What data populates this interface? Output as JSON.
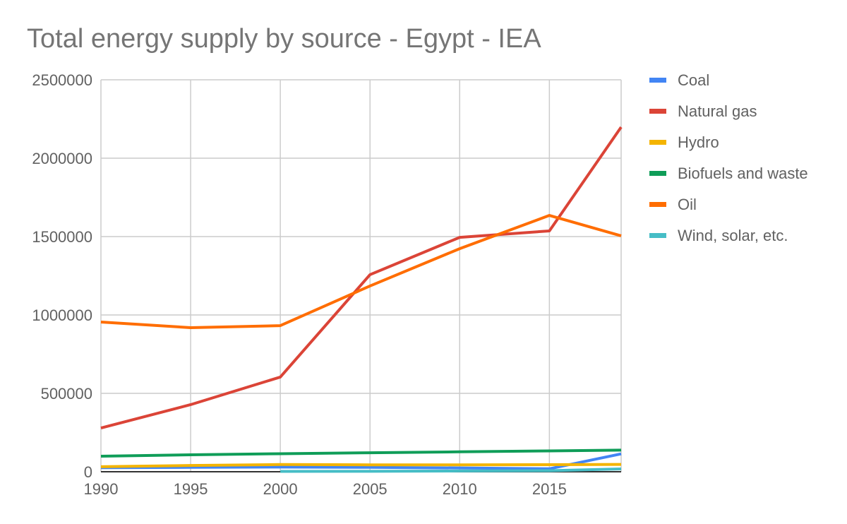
{
  "chart_data": {
    "type": "line",
    "title": "Total energy supply by source - Egypt - IEA",
    "xlabel": "",
    "ylabel": "",
    "x": [
      1990,
      1995,
      2000,
      2005,
      2010,
      2015,
      2019
    ],
    "xlim": [
      1990,
      2019
    ],
    "ylim": [
      0,
      2500000
    ],
    "xticks": [
      "1990",
      "1995",
      "2000",
      "2005",
      "2010",
      "2015"
    ],
    "yticks": [
      "0",
      "500000",
      "1000000",
      "1500000",
      "2000000",
      "2500000"
    ],
    "grid": true,
    "legend_position": "right",
    "series": [
      {
        "name": "Coal",
        "color": "#4285f4",
        "values": [
          26000,
          28000,
          30000,
          28000,
          24000,
          19000,
          114000
        ]
      },
      {
        "name": "Natural gas",
        "color": "#db4437",
        "values": [
          279000,
          428000,
          604000,
          1257000,
          1495000,
          1536000,
          2198000
        ]
      },
      {
        "name": "Hydro",
        "color": "#f4b400",
        "values": [
          32000,
          40000,
          46000,
          44000,
          44000,
          45000,
          47000
        ]
      },
      {
        "name": "Biofuels and waste",
        "color": "#0f9d58",
        "values": [
          99000,
          108000,
          115000,
          121000,
          127000,
          133000,
          138000
        ]
      },
      {
        "name": "Oil",
        "color": "#ff6d00",
        "values": [
          955000,
          919000,
          932000,
          1185000,
          1423000,
          1635000,
          1505000
        ]
      },
      {
        "name": "Wind, solar, etc.",
        "color": "#46bdc6",
        "values": [
          null,
          null,
          2000,
          3000,
          5000,
          7000,
          18000
        ]
      }
    ]
  }
}
